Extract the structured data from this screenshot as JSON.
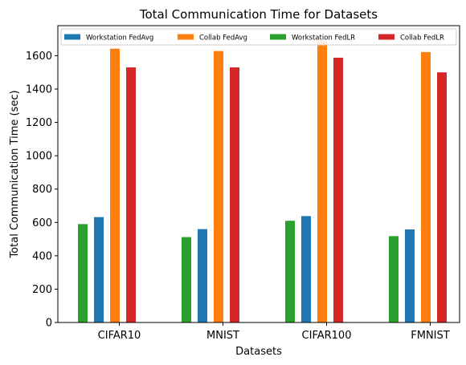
{
  "chart_data": {
    "type": "bar",
    "title": "Total Communication Time for Datasets",
    "xlabel": "Datasets",
    "ylabel": "Total Communication Time (sec)",
    "categories": [
      "CIFAR10",
      "MNIST",
      "CIFAR100",
      "FMNIST"
    ],
    "ylim": [
      0,
      1780
    ],
    "yticks": [
      0,
      200,
      400,
      600,
      800,
      1000,
      1200,
      1400,
      1600
    ],
    "grid": false,
    "legend_position": "top",
    "series": [
      {
        "name": "Workstation FedAvg",
        "color": "#1f77b4",
        "values": [
          632,
          560,
          638,
          558
        ]
      },
      {
        "name": "Collab FedAvg",
        "color": "#ff7f0e",
        "values": [
          1642,
          1628,
          1688,
          1622
        ]
      },
      {
        "name": "Workstation FedLR",
        "color": "#2ca02c",
        "values": [
          590,
          512,
          610,
          518
        ]
      },
      {
        "name": "Collab FedLR",
        "color": "#d62728",
        "values": [
          1530,
          1530,
          1588,
          1500
        ]
      }
    ]
  }
}
